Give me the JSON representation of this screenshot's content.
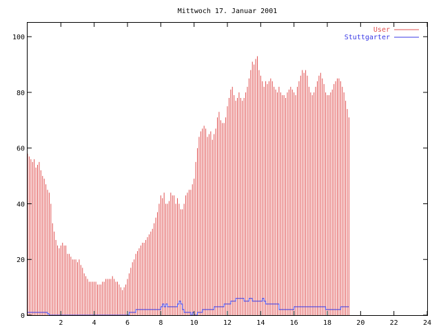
{
  "chart_data": {
    "type": "bar",
    "title": "Mittwoch 17. Januar 2001",
    "xlabel": "",
    "ylabel": "",
    "xlim": [
      0,
      24
    ],
    "ylim": [
      0,
      105
    ],
    "x_ticks": [
      "2",
      "4",
      "6",
      "8",
      "10",
      "12",
      "14",
      "16",
      "18",
      "20",
      "22",
      "24"
    ],
    "y_ticks": [
      "0",
      "20",
      "40",
      "60",
      "80",
      "100"
    ],
    "legend_position": "top-right",
    "grid": false,
    "x_step_hours": 0.1,
    "series": [
      {
        "name": "User",
        "color": "#e05050",
        "style": "impulses",
        "values": [
          58,
          57,
          56,
          55,
          56,
          53,
          54,
          55,
          52,
          50,
          49,
          47,
          45,
          44,
          40,
          33,
          30,
          27,
          25,
          24,
          25,
          26,
          25,
          25,
          22,
          22,
          21,
          20,
          20,
          20,
          19,
          20,
          18,
          17,
          15,
          14,
          13,
          12,
          12,
          12,
          12,
          12,
          11,
          11,
          11,
          12,
          12,
          13,
          13,
          13,
          13,
          14,
          13,
          12,
          12,
          11,
          10,
          9,
          10,
          11,
          13,
          15,
          17,
          19,
          20,
          22,
          23,
          24,
          25,
          26,
          26,
          27,
          28,
          29,
          30,
          31,
          33,
          35,
          37,
          40,
          43,
          42,
          44,
          40,
          40,
          41,
          44,
          43,
          43,
          40,
          42,
          40,
          38,
          38,
          40,
          43,
          44,
          45,
          45,
          47,
          49,
          55,
          60,
          64,
          66,
          67,
          68,
          67,
          64,
          65,
          66,
          63,
          65,
          67,
          71,
          73,
          70,
          69,
          69,
          71,
          75,
          78,
          81,
          82,
          79,
          77,
          78,
          80,
          78,
          77,
          78,
          80,
          82,
          85,
          88,
          91,
          90,
          92,
          93,
          88,
          86,
          84,
          82,
          84,
          83,
          84,
          85,
          84,
          82,
          81,
          80,
          82,
          80,
          79,
          79,
          78,
          80,
          81,
          82,
          81,
          80,
          79,
          82,
          84,
          86,
          88,
          87,
          88,
          86,
          82,
          80,
          79,
          80,
          82,
          84,
          86,
          87,
          85,
          83,
          80,
          79,
          79,
          80,
          81,
          83,
          84,
          85,
          85,
          84,
          82,
          80,
          77,
          74,
          71
        ]
      },
      {
        "name": "Stuttgarter",
        "color": "#3a3ae6",
        "style": "steps",
        "values": [
          1,
          1,
          1,
          1,
          1,
          1,
          1,
          1,
          1,
          1,
          1,
          1,
          0.5,
          0,
          0,
          0,
          0,
          0,
          0,
          0,
          0,
          0,
          0,
          0,
          0,
          0,
          0,
          0,
          0,
          0,
          0,
          0,
          0,
          0,
          0,
          0,
          0,
          0,
          0,
          0,
          0,
          0,
          0,
          0,
          0,
          0,
          0,
          0,
          0,
          0,
          0,
          0,
          0,
          0,
          0,
          0,
          0,
          0,
          0,
          0,
          0,
          1,
          1,
          1,
          1,
          2,
          2,
          2,
          2,
          2,
          2,
          2,
          2,
          2,
          2,
          2,
          2,
          2,
          2,
          2,
          3,
          4,
          3,
          4,
          3,
          3,
          3,
          3,
          3,
          3,
          4,
          5,
          4,
          2,
          1,
          1,
          1,
          1,
          0,
          1,
          0,
          0,
          1,
          1,
          1,
          2,
          2,
          2,
          2,
          2,
          2,
          2,
          3,
          3,
          3,
          3,
          3,
          3,
          4,
          4,
          4,
          4,
          5,
          5,
          5,
          6,
          6,
          6,
          6,
          6,
          5,
          5,
          5,
          6,
          6,
          5,
          5,
          5,
          5,
          5,
          5,
          6,
          5,
          4,
          4,
          4,
          4,
          4,
          4,
          4,
          4,
          2,
          2,
          2,
          2,
          2,
          2,
          2,
          2,
          2,
          3,
          3,
          3,
          3,
          3,
          3,
          3,
          3,
          3,
          3,
          3,
          3,
          3,
          3,
          3,
          3,
          3,
          3,
          3,
          2,
          2,
          2,
          2,
          2,
          2,
          2,
          2,
          2,
          3,
          3,
          3,
          3,
          3
        ]
      }
    ]
  }
}
